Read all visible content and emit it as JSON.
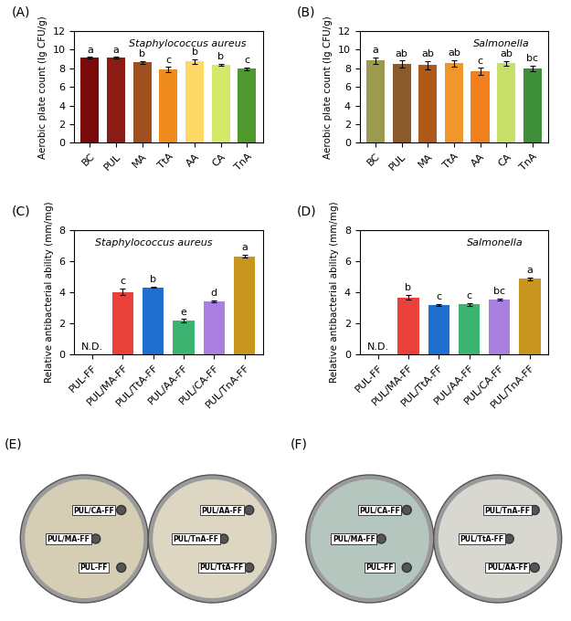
{
  "chart_data": [
    {
      "type": "bar",
      "label": "(A)",
      "title": "Staphylococcus aureus",
      "y_label": "Aerobic plate count (lg CFU/g)",
      "categories": [
        "BC",
        "PUL",
        "MA",
        "TtA",
        "AA",
        "CA",
        "TnA"
      ],
      "values": [
        9.15,
        9.15,
        8.65,
        7.85,
        8.75,
        8.4,
        7.95
      ],
      "errors": [
        0.1,
        0.1,
        0.15,
        0.3,
        0.25,
        0.1,
        0.15
      ],
      "annotations": [
        "a",
        "a",
        "b",
        "c",
        "b",
        "b",
        "c"
      ],
      "colors": [
        "#7b0a0a",
        "#8b1c14",
        "#a0501e",
        "#f08c1e",
        "#ffd966",
        "#d4e86a",
        "#4e9a2e"
      ],
      "ylim": [
        0,
        12
      ],
      "yticks": [
        0,
        2,
        4,
        6,
        8,
        10,
        12
      ],
      "grid": false
    },
    {
      "type": "bar",
      "label": "(B)",
      "title": "Salmonella",
      "y_label": "Aerobic plate count (lg CFU/g)",
      "categories": [
        "BC",
        "PUL",
        "MA",
        "TtA",
        "AA",
        "CA",
        "TnA"
      ],
      "values": [
        8.85,
        8.45,
        8.35,
        8.55,
        7.65,
        8.55,
        8.0
      ],
      "errors": [
        0.35,
        0.4,
        0.45,
        0.35,
        0.4,
        0.25,
        0.3
      ],
      "annotations": [
        "a",
        "ab",
        "ab",
        "ab",
        "c",
        "ab",
        "bc"
      ],
      "colors": [
        "#9c9a4e",
        "#8b5a2b",
        "#b05a1a",
        "#f0962a",
        "#f07f1e",
        "#c8e06a",
        "#3f8f3a"
      ],
      "ylim": [
        0,
        12
      ],
      "yticks": [
        0,
        2,
        4,
        6,
        8,
        10,
        12
      ],
      "grid": false
    },
    {
      "type": "bar",
      "label": "(C)",
      "title": "Staphylococcus aureus",
      "y_label": "Relative antibacterial ability (mm/mg)",
      "categories": [
        "PUL-FF",
        "PUL/MA-FF",
        "PUL/TtA-FF",
        "PUL/AA-FF",
        "PUL/CA-FF",
        "PUL/TnA-FF"
      ],
      "values": [
        null,
        4.0,
        4.3,
        2.15,
        3.4,
        6.3
      ],
      "errors": [
        null,
        0.2,
        0.05,
        0.1,
        0.05,
        0.1
      ],
      "annotations": [
        "N.D.",
        "c",
        "b",
        "e",
        "d",
        "a"
      ],
      "colors": [
        "#888888",
        "#e8403a",
        "#1f6fd1",
        "#3cb371",
        "#a97fe0",
        "#c8961e"
      ],
      "ylim": [
        0,
        8
      ],
      "yticks": [
        0,
        2,
        4,
        6,
        8
      ],
      "grid": false
    },
    {
      "type": "bar",
      "label": "(D)",
      "title": "Salmonella",
      "y_label": "Relative antibacterial ability (mm/mg)",
      "categories": [
        "PUL-FF",
        "PUL/MA-FF",
        "PUL/TtA-FF",
        "PUL/AA-FF",
        "PUL/CA-FF",
        "PUL/TnA-FF"
      ],
      "values": [
        null,
        3.65,
        3.15,
        3.2,
        3.5,
        4.85
      ],
      "errors": [
        null,
        0.15,
        0.08,
        0.1,
        0.08,
        0.08
      ],
      "annotations": [
        "N.D.",
        "b",
        "c",
        "c",
        "bc",
        "a"
      ],
      "colors": [
        "#888888",
        "#e8403a",
        "#1f6fd1",
        "#3cb371",
        "#a97fe0",
        "#c8961e"
      ],
      "ylim": [
        0,
        8
      ],
      "yticks": [
        0,
        2,
        4,
        6,
        8
      ],
      "grid": false
    }
  ],
  "images": [
    {
      "label": "(E)",
      "dishes": [
        [
          "PUL/CA-FF",
          "PUL/MA-FF",
          "PUL-FF"
        ],
        [
          "PUL/AA-FF",
          "PUL/TnA-FF",
          "PUL/TtA-FF"
        ]
      ]
    },
    {
      "label": "(F)",
      "dishes": [
        [
          "PUL/CA-FF",
          "PUL/MA-FF",
          "PUL-FF"
        ],
        [
          "PUL/TnA-FF",
          "PUL/TtA-FF",
          "PUL/AA-FF"
        ]
      ]
    }
  ]
}
